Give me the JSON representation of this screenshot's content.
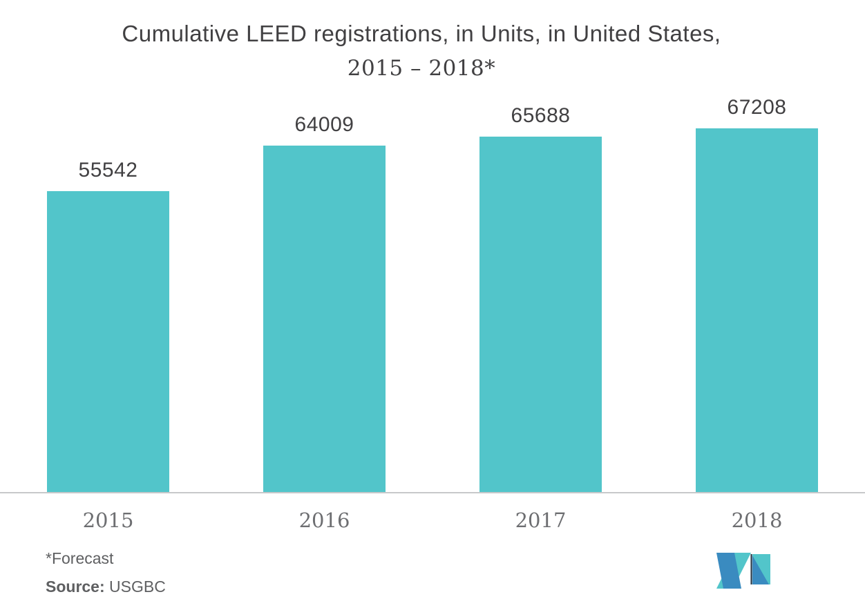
{
  "title": {
    "lines": [
      "Cumulative LEED registrations, in Units, in United States,",
      "2015 – 2018*"
    ]
  },
  "chart_data": {
    "type": "bar",
    "title": "Cumulative LEED registrations, in Units, in United States, 2015 – 2018*",
    "categories": [
      "2015",
      "2016",
      "2017",
      "2018"
    ],
    "values": [
      55542,
      64009,
      65688,
      67208
    ],
    "xlabel": "",
    "ylabel": "",
    "ylim": [
      0,
      70000
    ],
    "grid": false,
    "legend": "none",
    "bar_color": "#52c5ca",
    "value_label_color": "#414042",
    "category_label_color": "#6d6e71",
    "axis_line_color": "#c7c8ca"
  },
  "footer": {
    "forecast_note": "*Forecast",
    "source_label": "Source:",
    "source_value": " USGBC"
  },
  "logo": {
    "name": "mordor-intelligence-logo",
    "teal": "#52c5ca",
    "blue": "#3a8bc0",
    "navy": "#162a3b"
  }
}
